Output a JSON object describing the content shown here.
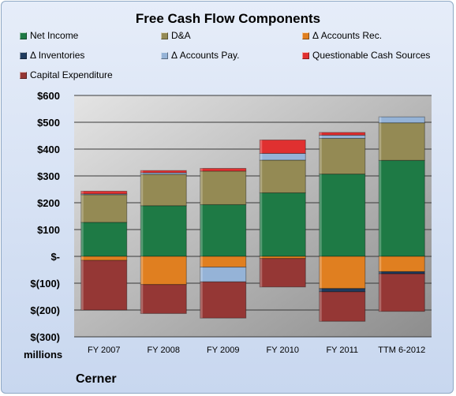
{
  "chart_data": {
    "type": "bar",
    "stacked": true,
    "title": "Free Cash Flow Components",
    "company": "Cerner",
    "units_label": "millions",
    "categories": [
      "FY 2007",
      "FY 2008",
      "FY 2009",
      "FY 2010",
      "FY 2011",
      "TTM 6-2012"
    ],
    "ylim": [
      -300,
      600
    ],
    "yticks": [
      600,
      500,
      400,
      300,
      200,
      100,
      0,
      -100,
      -200,
      -300
    ],
    "ytick_labels": [
      "$600",
      "$500",
      "$400",
      "$300",
      "$200",
      "$100",
      "$-",
      "$(100)",
      "$(200)",
      "$(300)"
    ],
    "grid": true,
    "legend_position": "top",
    "series": [
      {
        "name": "Net Income",
        "color": "#1e7a45",
        "values": [
          127,
          189,
          193,
          237,
          307,
          358
        ]
      },
      {
        "name": "D&A",
        "color": "#948a54",
        "values": [
          103,
          117,
          125,
          122,
          133,
          140
        ]
      },
      {
        "name": "Δ Accounts Rec.",
        "color": "#e07f20",
        "values": [
          -15,
          -105,
          -40,
          -8,
          -120,
          -57
        ]
      },
      {
        "name": "Δ Inventories",
        "color": "#1f3b5e",
        "values": [
          0,
          0,
          0,
          0,
          -12,
          -8
        ]
      },
      {
        "name": "Δ Accounts Pay.",
        "color": "#95b3d7",
        "values": [
          3,
          6,
          -55,
          25,
          12,
          22
        ]
      },
      {
        "name": "Questionable Cash Sources",
        "color": "#e03030",
        "values": [
          10,
          8,
          10,
          50,
          10,
          0
        ]
      },
      {
        "name": "Capital Expenditure",
        "color": "#953735",
        "values": [
          -185,
          -108,
          -135,
          -106,
          -110,
          -140
        ]
      }
    ]
  }
}
